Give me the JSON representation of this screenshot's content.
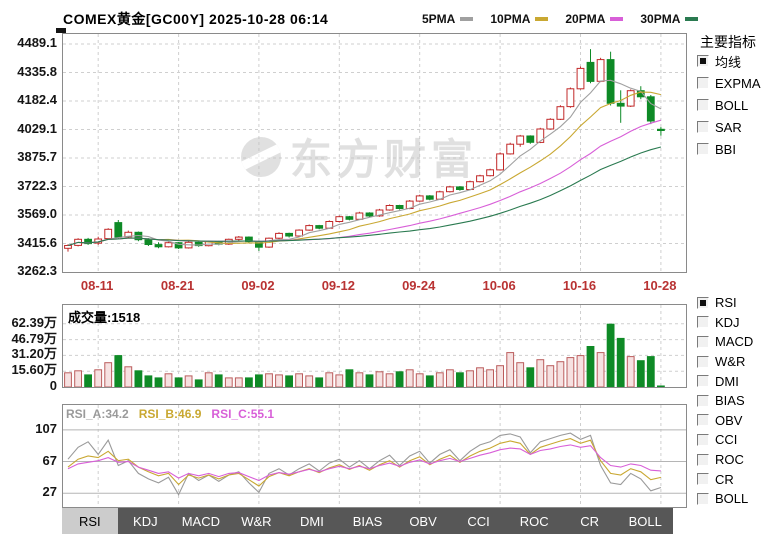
{
  "header": {
    "title": "COMEX黄金[GC00Y] 2025-10-28 06:14",
    "legend": [
      {
        "label": "5PMA",
        "color": "#a0a0a0"
      },
      {
        "label": "10PMA",
        "color": "#c9a832"
      },
      {
        "label": "20PMA",
        "color": "#d85fd8"
      },
      {
        "label": "30PMA",
        "color": "#2a7a50"
      }
    ]
  },
  "watermark": "东方财富",
  "sidebar": {
    "main_title": "主要指标",
    "main_items": [
      {
        "label": "均线",
        "checked": true
      },
      {
        "label": "EXPMA",
        "checked": false
      },
      {
        "label": "BOLL",
        "checked": false
      },
      {
        "label": "SAR",
        "checked": false
      },
      {
        "label": "BBI",
        "checked": false
      }
    ],
    "sub_items": [
      {
        "label": "RSI",
        "checked": true
      },
      {
        "label": "KDJ",
        "checked": false
      },
      {
        "label": "MACD",
        "checked": false
      },
      {
        "label": "W&R",
        "checked": false
      },
      {
        "label": "DMI",
        "checked": false
      },
      {
        "label": "BIAS",
        "checked": false
      },
      {
        "label": "OBV",
        "checked": false
      },
      {
        "label": "CCI",
        "checked": false
      },
      {
        "label": "ROC",
        "checked": false
      },
      {
        "label": "CR",
        "checked": false
      },
      {
        "label": "BOLL",
        "checked": false
      }
    ]
  },
  "volume_panel": {
    "label": "成交量:1518"
  },
  "tabs": {
    "active": "RSI",
    "items": [
      "RSI",
      "KDJ",
      "MACD",
      "W&R",
      "DMI",
      "BIAS",
      "OBV",
      "CCI",
      "ROC",
      "CR",
      "BOLL"
    ]
  },
  "colors": {
    "up": "#c22828",
    "up_fill": "#ffffff",
    "down": "#0e8a26",
    "vol_up_fill": "#f6e1e1",
    "vol_up_stroke": "#bb5c5c",
    "ma5": "#a0a0a0",
    "ma10": "#c9a832",
    "ma20": "#d85fd8",
    "ma30": "#2a7a50",
    "grid": "#cfcfcf",
    "rsi_grid": "#b5b5b5",
    "date": "#b93333"
  },
  "chart_data": [
    {
      "type": "candlestick",
      "title": "COMEX黄金[GC00Y] 日K线",
      "slots": 62,
      "ylim": [
        3262.3,
        4543
      ],
      "yticks": [
        4489.1,
        4335.8,
        4182.4,
        4029.1,
        3875.7,
        3722.3,
        3569.0,
        3415.6,
        3262.3
      ],
      "ytick_labels": [
        "4489.1",
        "4335.8",
        "4182.4",
        "4029.1",
        "3875.7",
        "3722.3",
        "3569.0",
        "3415.6",
        "3262.3"
      ],
      "xtick_idx": [
        3,
        11,
        19,
        27,
        35,
        43,
        51,
        59
      ],
      "xtick_labels": [
        "08-11",
        "08-21",
        "09-02",
        "09-12",
        "09-24",
        "10-06",
        "10-16",
        "10-28"
      ],
      "ma_periods": [
        5,
        10,
        20,
        30
      ],
      "candles": [
        [
          3390,
          3412,
          3372,
          3405
        ],
        [
          3405,
          3444,
          3400,
          3438
        ],
        [
          3438,
          3446,
          3408,
          3415
        ],
        [
          3418,
          3452,
          3408,
          3440
        ],
        [
          3442,
          3498,
          3436,
          3492
        ],
        [
          3528,
          3542,
          3440,
          3450
        ],
        [
          3452,
          3485,
          3445,
          3476
        ],
        [
          3476,
          3480,
          3428,
          3436
        ],
        [
          3436,
          3444,
          3402,
          3410
        ],
        [
          3410,
          3422,
          3390,
          3398
        ],
        [
          3398,
          3426,
          3394,
          3420
        ],
        [
          3420,
          3424,
          3386,
          3392
        ],
        [
          3392,
          3428,
          3388,
          3422
        ],
        [
          3422,
          3426,
          3398,
          3404
        ],
        [
          3404,
          3432,
          3400,
          3426
        ],
        [
          3426,
          3430,
          3406,
          3412
        ],
        [
          3412,
          3442,
          3408,
          3438
        ],
        [
          3438,
          3456,
          3432,
          3450
        ],
        [
          3450,
          3454,
          3420,
          3426
        ],
        [
          3426,
          3430,
          3376,
          3396
        ],
        [
          3396,
          3448,
          3392,
          3444
        ],
        [
          3444,
          3476,
          3440,
          3470
        ],
        [
          3470,
          3474,
          3448,
          3456
        ],
        [
          3456,
          3492,
          3452,
          3488
        ],
        [
          3488,
          3518,
          3484,
          3512
        ],
        [
          3512,
          3516,
          3492,
          3498
        ],
        [
          3498,
          3540,
          3494,
          3534
        ],
        [
          3534,
          3566,
          3530,
          3560
        ],
        [
          3560,
          3564,
          3540,
          3546
        ],
        [
          3546,
          3586,
          3542,
          3580
        ],
        [
          3580,
          3584,
          3558,
          3564
        ],
        [
          3564,
          3602,
          3560,
          3596
        ],
        [
          3596,
          3626,
          3592,
          3620
        ],
        [
          3620,
          3624,
          3598,
          3604
        ],
        [
          3604,
          3650,
          3600,
          3644
        ],
        [
          3644,
          3678,
          3640,
          3672
        ],
        [
          3672,
          3676,
          3648,
          3654
        ],
        [
          3654,
          3700,
          3650,
          3694
        ],
        [
          3694,
          3726,
          3690,
          3720
        ],
        [
          3720,
          3724,
          3700,
          3706
        ],
        [
          3706,
          3754,
          3702,
          3748
        ],
        [
          3748,
          3786,
          3744,
          3780
        ],
        [
          3780,
          3818,
          3776,
          3812
        ],
        [
          3812,
          3906,
          3808,
          3898
        ],
        [
          3898,
          3958,
          3894,
          3950
        ],
        [
          3950,
          4000,
          3936,
          3994
        ],
        [
          3994,
          3998,
          3952,
          3960
        ],
        [
          3960,
          4038,
          3956,
          4032
        ],
        [
          4032,
          4090,
          4028,
          4084
        ],
        [
          4084,
          4160,
          4080,
          4152
        ],
        [
          4152,
          4255,
          4146,
          4248
        ],
        [
          4248,
          4368,
          4244,
          4358
        ],
        [
          4390,
          4462,
          4278,
          4288
        ],
        [
          4288,
          4415,
          4284,
          4405
        ],
        [
          4405,
          4448,
          4158,
          4170
        ],
        [
          4170,
          4240,
          4065,
          4155
        ],
        [
          4155,
          4245,
          4150,
          4238
        ],
        [
          4238,
          4262,
          4192,
          4205
        ],
        [
          4205,
          4215,
          4058,
          4075
        ],
        [
          4030,
          4042,
          3996,
          4028
        ]
      ]
    },
    {
      "type": "bar",
      "title": "成交量",
      "current_value": "1518",
      "unit": "万",
      "ylim": [
        0,
        81
      ],
      "yticks": [
        62.39,
        46.79,
        31.2,
        15.6,
        0
      ],
      "ytick_labels": [
        "62.39万",
        "46.79万",
        "31.20万",
        "15.60万",
        "0"
      ],
      "values": [
        14,
        16,
        12,
        17,
        24,
        31,
        20,
        16,
        11,
        9,
        13,
        9,
        11,
        7,
        14,
        12,
        9,
        9,
        9,
        12,
        13,
        12,
        11,
        13,
        11,
        9,
        14,
        12,
        17,
        14,
        12,
        15,
        13,
        15,
        17,
        13,
        11,
        14,
        17,
        14,
        16,
        19,
        17,
        21,
        34,
        24,
        19,
        27,
        21,
        25,
        29,
        31,
        40,
        34,
        62,
        48,
        30,
        26,
        30,
        0.15
      ]
    },
    {
      "type": "line",
      "title": "RSI",
      "ylim": [
        9.5,
        138.5
      ],
      "yticks": [
        107,
        67,
        27
      ],
      "ytick_labels": [
        "107",
        "67",
        "27"
      ],
      "series": [
        {
          "name": "RSI_A",
          "value": "34.2",
          "color": "#9a9a9a",
          "values": [
            70,
            85,
            92,
            76,
            94,
            62,
            68,
            52,
            45,
            40,
            47,
            25,
            52,
            43,
            50,
            42,
            50,
            54,
            40,
            28,
            52,
            58,
            50,
            58,
            64,
            55,
            65,
            70,
            60,
            68,
            58,
            68,
            75,
            62,
            74,
            80,
            65,
            76,
            82,
            68,
            80,
            88,
            92,
            100,
            102,
            98,
            78,
            92,
            96,
            100,
            103,
            95,
            100,
            62,
            40,
            38,
            52,
            45,
            30,
            34.2
          ]
        },
        {
          "name": "RSI_B",
          "value": "46.9",
          "color": "#c9a832",
          "values": [
            60,
            70,
            74,
            72,
            80,
            68,
            70,
            60,
            54,
            49,
            52,
            38,
            50,
            46,
            50,
            45,
            50,
            52,
            44,
            36,
            48,
            53,
            49,
            54,
            58,
            53,
            59,
            63,
            57,
            62,
            56,
            63,
            68,
            60,
            68,
            73,
            63,
            70,
            75,
            66,
            74,
            80,
            84,
            90,
            93,
            90,
            76,
            85,
            89,
            93,
            96,
            90,
            94,
            68,
            52,
            50,
            58,
            54,
            44,
            46.9
          ]
        },
        {
          "name": "RSI_C",
          "value": "55.1",
          "color": "#d85fd8",
          "values": [
            58,
            64,
            66,
            68,
            72,
            66,
            67,
            60,
            56,
            52,
            54,
            46,
            52,
            49,
            52,
            48,
            52,
            53,
            48,
            43,
            50,
            53,
            51,
            54,
            57,
            54,
            58,
            61,
            58,
            61,
            58,
            62,
            65,
            61,
            66,
            69,
            64,
            68,
            71,
            67,
            71,
            75,
            78,
            82,
            84,
            83,
            76,
            81,
            83,
            86,
            88,
            85,
            87,
            72,
            62,
            60,
            64,
            62,
            56,
            55.1
          ]
        }
      ]
    }
  ]
}
